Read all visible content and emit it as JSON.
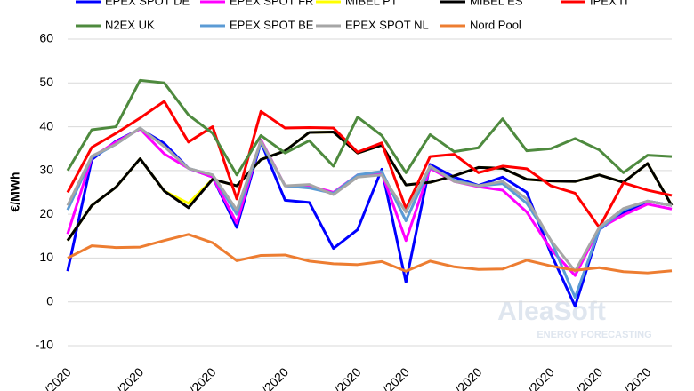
{
  "chart_data": {
    "type": "line",
    "y_label": "€/MWh",
    "watermark": "AleaSoft",
    "watermark_subtitle": "ENERGY FORECASTING",
    "categories": [
      "/2020",
      null,
      null,
      "/2020",
      null,
      null,
      "/2020",
      null,
      null,
      "/2020",
      null,
      null,
      "/2020",
      null,
      "/2020",
      null,
      null,
      "/2020",
      null,
      null,
      "/2020",
      null,
      "/2020",
      null,
      "/2020",
      null
    ],
    "ylim": [
      -10,
      60
    ],
    "yticks": [
      -10,
      0,
      10,
      20,
      30,
      40,
      50,
      60
    ],
    "grid": true,
    "series": [
      {
        "name": "EPEX SPOT DE",
        "color": "#0000ff",
        "values": [
          7,
          32.5,
          36.7,
          39.5,
          36.2,
          30.5,
          28.5,
          17,
          36.5,
          23.2,
          22.7,
          12.2,
          16.5,
          30.3,
          4.5,
          31.4,
          28.5,
          26.6,
          28.5,
          25,
          11,
          -1,
          16.5,
          20.3,
          23,
          22
        ]
      },
      {
        "name": "EPEX SPOT FR",
        "color": "#ff00ff",
        "values": [
          15.5,
          33,
          36.5,
          39.5,
          33.8,
          30.5,
          28.5,
          18,
          37,
          26.5,
          26.5,
          25,
          29,
          29.5,
          14,
          30.5,
          27.5,
          26.3,
          25.5,
          20.5,
          12,
          6,
          16.8,
          19.8,
          22.3,
          21.2
        ]
      },
      {
        "name": "MIBEL PT",
        "color": "#ffff00",
        "values": [
          14,
          22,
          26.2,
          32.7,
          25.3,
          22.5,
          28,
          26.5,
          32.5,
          34.5,
          38.7,
          38.8,
          34,
          35.8,
          26.7,
          27.3,
          28.8,
          30.7,
          30.5,
          28,
          27.6,
          27.5,
          29,
          27.3,
          31.6,
          22
        ]
      },
      {
        "name": "MIBEL ES",
        "color": "#000000",
        "values": [
          14,
          22,
          26.2,
          32.7,
          25.3,
          21.5,
          28,
          26.5,
          32.5,
          34.5,
          38.7,
          38.8,
          34,
          35.8,
          26.7,
          27.3,
          28.8,
          30.7,
          30.5,
          28,
          27.6,
          27.5,
          29,
          27.3,
          31.6,
          22
        ]
      },
      {
        "name": "IPEX IT",
        "color": "#ff0000",
        "values": [
          25,
          35.3,
          38.5,
          42,
          45.8,
          36.5,
          40,
          23.5,
          43.5,
          39.7,
          39.8,
          39.7,
          34.2,
          36.3,
          21.3,
          33.2,
          33.7,
          29.5,
          31,
          30.4,
          26.5,
          24.8,
          17,
          27.2,
          25.5,
          24.3
        ]
      },
      {
        "name": "N2EX UK",
        "color": "#4e8a3e",
        "values": [
          30,
          39.3,
          40,
          50.6,
          50,
          42.7,
          38.5,
          29,
          38,
          34,
          36.8,
          31,
          42.2,
          38,
          29.5,
          38.2,
          34.3,
          35.2,
          41.8,
          34.5,
          35,
          37.3,
          34.7,
          29.5,
          33.5,
          33.2
        ]
      },
      {
        "name": "EPEX SPOT BE",
        "color": "#5b9bd5",
        "values": [
          21,
          33,
          36,
          39.7,
          35.5,
          30.5,
          29,
          20,
          36.5,
          26.5,
          26,
          24.8,
          29,
          29.8,
          18.5,
          30.8,
          27.8,
          26.5,
          27,
          22.5,
          14,
          1,
          16.5,
          21,
          23,
          22
        ]
      },
      {
        "name": "EPEX SPOT NL",
        "color": "#a6a6a6",
        "values": [
          22,
          33.3,
          36,
          39.7,
          35.5,
          30.5,
          29,
          21,
          36.8,
          26.5,
          26.8,
          24.5,
          28.5,
          29,
          20.5,
          31,
          27.5,
          26.5,
          27.5,
          23.5,
          14,
          7,
          17,
          21.3,
          23,
          22
        ]
      },
      {
        "name": "Nord Pool",
        "color": "#ed7d31",
        "values": [
          10,
          12.8,
          12.4,
          12.5,
          14,
          15.4,
          13.5,
          9.4,
          10.6,
          10.7,
          9.3,
          8.7,
          8.5,
          9.2,
          7,
          9.3,
          8,
          7.4,
          7.5,
          9.5,
          8.2,
          7.2,
          7.8,
          6.9,
          6.6,
          7.1
        ]
      }
    ]
  }
}
